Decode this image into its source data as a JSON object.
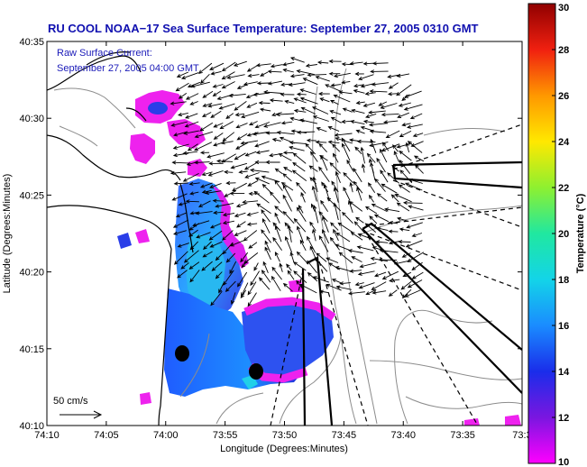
{
  "title": "RU COOL  NOAA−17  Sea Surface Temperature:  September 27, 2005 0310 GMT",
  "annotation": {
    "line1": "Raw Surface Current:",
    "line2": "September 27, 2005 04:00 GMT"
  },
  "scale_label": "50 cm/s",
  "colors": {
    "land": "#ffffff",
    "coast": "#000000",
    "bathymetry": "#8c8c8c",
    "arrow": "#000000",
    "annotation": "#1a1ab8"
  },
  "chart_data": {
    "type": "map",
    "xlabel": "Longitude (Degrees:Minutes)",
    "ylabel": "Latitude (Degrees:Minutes)",
    "x_ticks": [
      "74:10",
      "74:05",
      "74:00",
      "73:55",
      "73:50",
      "73:45",
      "73:40",
      "73:35",
      "73:3"
    ],
    "y_ticks": [
      "40:10",
      "40:15",
      "40:20",
      "40:25",
      "40:30",
      "40:35"
    ],
    "xlim_min": [
      -10,
      -90
    ],
    "ylim_min": [
      0,
      25
    ],
    "colorbar": {
      "label": "Temperature (°C)",
      "range": [
        10,
        30
      ],
      "ticks": [
        10,
        12,
        14,
        16,
        18,
        20,
        22,
        24,
        26,
        28,
        30
      ]
    },
    "sst_patches": [
      {
        "name": "northern-magenta-patch",
        "temp": 10.5
      },
      {
        "name": "upper-coastal-patch",
        "temp": 12.0
      },
      {
        "name": "inner-shelf-patch",
        "temp": 14.0
      },
      {
        "name": "southern-bay-patch",
        "temp": 13.5
      }
    ],
    "markers": [
      "buoy-a",
      "buoy-b"
    ]
  }
}
